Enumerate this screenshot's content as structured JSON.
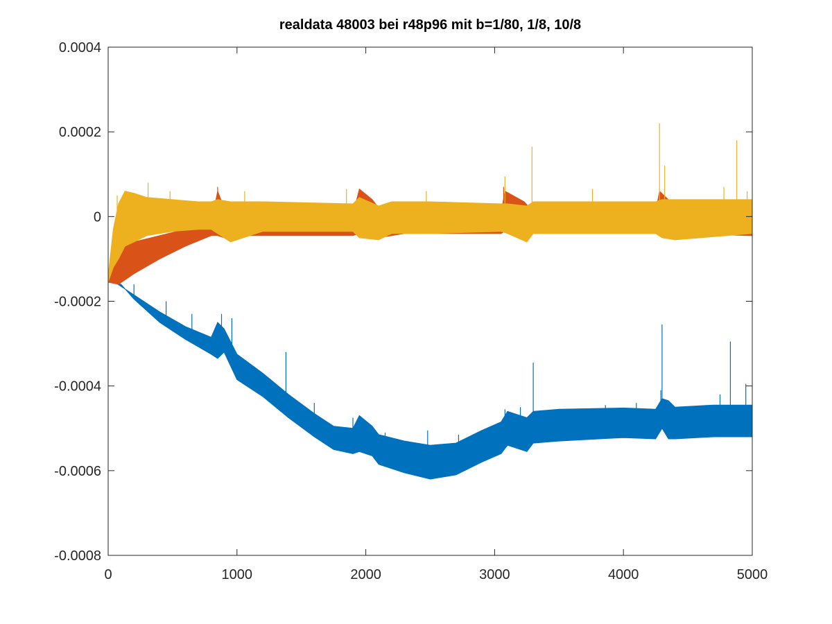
{
  "chart_data": {
    "type": "line",
    "title": "realdata 48003 bei r48p96 mit b=1/80, 1/8, 10/8",
    "xlabel": "",
    "ylabel": "",
    "xlim": [
      0,
      5000
    ],
    "ylim": [
      -0.0008,
      0.0004
    ],
    "x_ticks": [
      0,
      1000,
      2000,
      3000,
      4000,
      5000
    ],
    "x_tick_labels": [
      "0",
      "1000",
      "2000",
      "3000",
      "4000",
      "5000"
    ],
    "y_ticks": [
      -0.0008,
      -0.0006,
      -0.0004,
      -0.0002,
      0,
      0.0002,
      0.0004
    ],
    "y_tick_labels": [
      "-0.0008",
      "-0.0006",
      "-0.0004",
      "-0.0002",
      "0",
      "0.0002",
      "0.0004"
    ],
    "grid": false,
    "legend": "none",
    "series": [
      {
        "color": "#0072BD",
        "upper": [
          [
            0,
            -0.000145
          ],
          [
            100,
            -0.000165
          ],
          [
            200,
            -0.000185
          ],
          [
            400,
            -0.000225
          ],
          [
            600,
            -0.00026
          ],
          [
            800,
            -0.000285
          ],
          [
            850,
            -0.00025
          ],
          [
            900,
            -0.000265
          ],
          [
            1000,
            -0.000325
          ],
          [
            1200,
            -0.00037
          ],
          [
            1400,
            -0.00042
          ],
          [
            1600,
            -0.000465
          ],
          [
            1750,
            -0.000495
          ],
          [
            1900,
            -0.0005
          ],
          [
            1950,
            -0.00047
          ],
          [
            2050,
            -0.000495
          ],
          [
            2100,
            -0.000515
          ],
          [
            2300,
            -0.00053
          ],
          [
            2500,
            -0.00054
          ],
          [
            2700,
            -0.000535
          ],
          [
            2900,
            -0.000505
          ],
          [
            3050,
            -0.000485
          ],
          [
            3100,
            -0.00046
          ],
          [
            3250,
            -0.000475
          ],
          [
            3300,
            -0.00046
          ],
          [
            3500,
            -0.000455
          ],
          [
            4000,
            -0.000452
          ],
          [
            4250,
            -0.000455
          ],
          [
            4300,
            -0.00043
          ],
          [
            4350,
            -0.000435
          ],
          [
            4400,
            -0.00045
          ],
          [
            4700,
            -0.000445
          ],
          [
            5000,
            -0.000445
          ]
        ],
        "lower": [
          [
            0,
            -0.000155
          ],
          [
            100,
            -0.00016
          ],
          [
            200,
            -0.000195
          ],
          [
            400,
            -0.00025
          ],
          [
            600,
            -0.00029
          ],
          [
            800,
            -0.000325
          ],
          [
            850,
            -0.000335
          ],
          [
            900,
            -0.00032
          ],
          [
            1000,
            -0.000385
          ],
          [
            1200,
            -0.000425
          ],
          [
            1400,
            -0.000475
          ],
          [
            1600,
            -0.00052
          ],
          [
            1750,
            -0.00055
          ],
          [
            1900,
            -0.00056
          ],
          [
            1950,
            -0.000555
          ],
          [
            2050,
            -0.000565
          ],
          [
            2100,
            -0.000585
          ],
          [
            2300,
            -0.000605
          ],
          [
            2500,
            -0.00062
          ],
          [
            2700,
            -0.00061
          ],
          [
            2900,
            -0.00058
          ],
          [
            3050,
            -0.00056
          ],
          [
            3100,
            -0.00054
          ],
          [
            3250,
            -0.000555
          ],
          [
            3300,
            -0.000535
          ],
          [
            3500,
            -0.00053
          ],
          [
            4000,
            -0.000522
          ],
          [
            4250,
            -0.000525
          ],
          [
            4300,
            -0.0005
          ],
          [
            4350,
            -0.000525
          ],
          [
            4400,
            -0.000525
          ],
          [
            4700,
            -0.00052
          ],
          [
            5000,
            -0.00052
          ]
        ],
        "spikes": [
          [
            200,
            -0.00016
          ],
          [
            450,
            -0.0002
          ],
          [
            650,
            -0.00023
          ],
          [
            880,
            -0.00023
          ],
          [
            960,
            -0.00024
          ],
          [
            1380,
            -0.00032
          ],
          [
            1600,
            -0.00044
          ],
          [
            1900,
            -0.000475
          ],
          [
            2150,
            -0.00051
          ],
          [
            2480,
            -0.000505
          ],
          [
            2720,
            -0.000515
          ],
          [
            3080,
            -0.000455
          ],
          [
            3200,
            -0.00045
          ],
          [
            3300,
            -0.000345
          ],
          [
            3860,
            -0.000445
          ],
          [
            4100,
            -0.00044
          ],
          [
            4290,
            -0.00041
          ],
          [
            4300,
            -0.000255
          ],
          [
            4750,
            -0.00042
          ],
          [
            4830,
            -0.000295
          ],
          [
            4950,
            -0.000395
          ]
        ]
      },
      {
        "color": "#D95319",
        "upper": [
          [
            0,
            -0.000145
          ],
          [
            80,
            -8e-05
          ],
          [
            200,
            -6e-05
          ],
          [
            400,
            -4.5e-05
          ],
          [
            600,
            -3e-05
          ],
          [
            800,
            -1.5e-05
          ],
          [
            850,
            6e-05
          ],
          [
            900,
            2e-05
          ],
          [
            950,
            -1e-05
          ],
          [
            1200,
            5e-06
          ],
          [
            1900,
            5e-06
          ],
          [
            1950,
            6.5e-05
          ],
          [
            2050,
            4e-05
          ],
          [
            2100,
            2e-05
          ],
          [
            2300,
            5e-06
          ],
          [
            3050,
            1e-05
          ],
          [
            3080,
            6e-05
          ],
          [
            3230,
            3.5e-05
          ],
          [
            3300,
            1e-05
          ],
          [
            4250,
            1e-05
          ],
          [
            4280,
            6e-05
          ],
          [
            4400,
            2.5e-05
          ],
          [
            5000,
            3e-05
          ]
        ],
        "lower": [
          [
            0,
            -0.000155
          ],
          [
            80,
            -0.00016
          ],
          [
            200,
            -0.000135
          ],
          [
            400,
            -0.0001
          ],
          [
            600,
            -7e-05
          ],
          [
            800,
            -4.5e-05
          ],
          [
            850,
            -4.5e-05
          ],
          [
            900,
            -5e-05
          ],
          [
            950,
            -4.5e-05
          ],
          [
            1200,
            -4.5e-05
          ],
          [
            1900,
            -4.5e-05
          ],
          [
            1950,
            -4e-05
          ],
          [
            2050,
            -4.5e-05
          ],
          [
            2100,
            -5e-05
          ],
          [
            2300,
            -4e-05
          ],
          [
            3050,
            -4e-05
          ],
          [
            3080,
            -3.5e-05
          ],
          [
            3230,
            -4.5e-05
          ],
          [
            3300,
            -4e-05
          ],
          [
            4250,
            -4e-05
          ],
          [
            4280,
            -4e-05
          ],
          [
            4400,
            -4e-05
          ],
          [
            5000,
            -4.5e-05
          ]
        ],
        "spikes": [
          [
            850,
            7e-05
          ],
          [
            3070,
            7e-05
          ]
        ]
      },
      {
        "color": "#EDB120",
        "upper": [
          [
            0,
            -0.00014
          ],
          [
            40,
            -3e-05
          ],
          [
            80,
            3e-05
          ],
          [
            130,
            6e-05
          ],
          [
            200,
            5.5e-05
          ],
          [
            300,
            4.5e-05
          ],
          [
            500,
            4e-05
          ],
          [
            700,
            3.5e-05
          ],
          [
            800,
            3.5e-05
          ],
          [
            850,
            4e-05
          ],
          [
            950,
            3.5e-05
          ],
          [
            1200,
            3.5e-05
          ],
          [
            1900,
            3e-05
          ],
          [
            1950,
            4.5e-05
          ],
          [
            2100,
            2.5e-05
          ],
          [
            2200,
            3.5e-05
          ],
          [
            2500,
            3.5e-05
          ],
          [
            3050,
            3e-05
          ],
          [
            3100,
            3e-05
          ],
          [
            3250,
            2.5e-05
          ],
          [
            3300,
            3.5e-05
          ],
          [
            4250,
            3.5e-05
          ],
          [
            4300,
            4e-05
          ],
          [
            4400,
            4e-05
          ],
          [
            5000,
            4e-05
          ]
        ],
        "lower": [
          [
            0,
            -0.000155
          ],
          [
            40,
            -0.00012
          ],
          [
            80,
            -0.0001
          ],
          [
            130,
            -7e-05
          ],
          [
            200,
            -6e-05
          ],
          [
            300,
            -4.5e-05
          ],
          [
            500,
            -3.5e-05
          ],
          [
            700,
            -3e-05
          ],
          [
            800,
            -3e-05
          ],
          [
            850,
            -4e-05
          ],
          [
            950,
            -6e-05
          ],
          [
            1200,
            -3.5e-05
          ],
          [
            1900,
            -3.5e-05
          ],
          [
            1950,
            -5e-05
          ],
          [
            2100,
            -5.5e-05
          ],
          [
            2200,
            -4e-05
          ],
          [
            2500,
            -4e-05
          ],
          [
            3050,
            -3.5e-05
          ],
          [
            3100,
            -4e-05
          ],
          [
            3250,
            -6e-05
          ],
          [
            3300,
            -4e-05
          ],
          [
            4250,
            -4e-05
          ],
          [
            4300,
            -5e-05
          ],
          [
            4400,
            -5.5e-05
          ],
          [
            5000,
            -4e-05
          ]
        ],
        "spikes": [
          [
            70,
            5e-05
          ],
          [
            310,
            8e-05
          ],
          [
            480,
            6e-05
          ],
          [
            1060,
            6e-05
          ],
          [
            1850,
            6.5e-05
          ],
          [
            2470,
            6e-05
          ],
          [
            3080,
            9.5e-05
          ],
          [
            3290,
            0.000165
          ],
          [
            3760,
            6.5e-05
          ],
          [
            4280,
            0.00022
          ],
          [
            4320,
            0.00012
          ],
          [
            4780,
            7e-05
          ],
          [
            4880,
            0.00018
          ],
          [
            4960,
            6e-05
          ]
        ]
      }
    ]
  }
}
